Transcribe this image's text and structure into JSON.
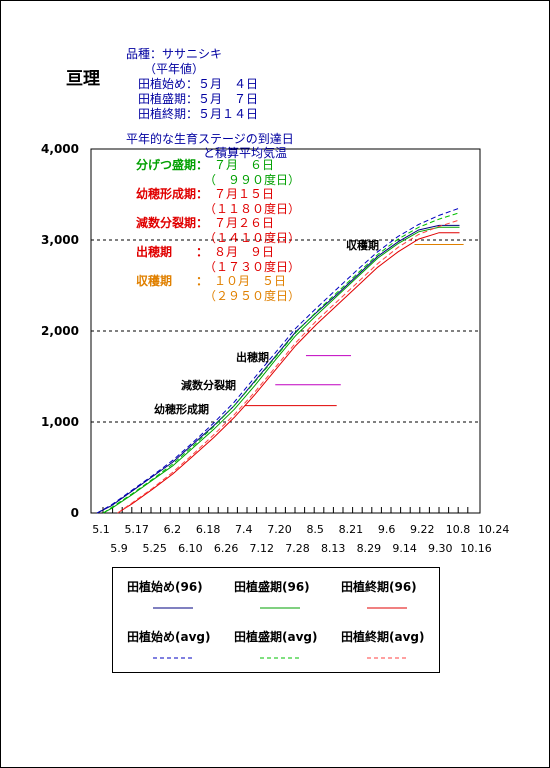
{
  "page": {
    "title": "亘理",
    "variety_line": "品種：ササニシキ",
    "avg_label": "（平年値）",
    "planting_dates": [
      "田植始め：５月　４日",
      "田植盛期：５月　７日",
      "田植終期：５月１４日"
    ],
    "chart_heading_1": "平年的な生育ステージの到達日",
    "chart_heading_2": "と積算平均気温"
  },
  "stages": [
    {
      "name": "分げつ盛期：",
      "date": "７月　６日",
      "gdd": "（　９９０度日）",
      "color": "#00a000"
    },
    {
      "name": "幼穂形成期：",
      "date": "７月１５日",
      "gdd": "（１１８０度日）",
      "color": "#e00000"
    },
    {
      "name": "減数分裂期：",
      "date": "７月２６日",
      "gdd": "（１４１０度日）",
      "color": "#e00000"
    },
    {
      "name": "出穂期　　：",
      "date": "８月　９日",
      "gdd": "（１７３０度日）",
      "color": "#e00000"
    },
    {
      "name": "収穫期　　：",
      "date": "１０月　５日",
      "gdd": "（２９５０度日）",
      "color": "#e08000"
    }
  ],
  "chart_labels": {
    "heading": "出穂期",
    "meiosis": "減数分裂期",
    "panicle": "幼穂形成期",
    "harvest": "収穫期"
  },
  "chart_data": {
    "type": "line",
    "ylim": [
      0,
      4000
    ],
    "y_ticks": [
      "0",
      "1,000",
      "2,000",
      "3,000",
      "4,000"
    ],
    "x_ticks_top": [
      "5.1",
      "5.17",
      "6.2",
      "6.18",
      "7.4",
      "7.20",
      "8.5",
      "8.21",
      "9.6",
      "9.22",
      "10.8",
      "10.24"
    ],
    "x_ticks_bottom": [
      "5.9",
      "5.25",
      "6.10",
      "6.26",
      "7.12",
      "7.28",
      "8.13",
      "8.29",
      "9.14",
      "9.30",
      "10.16"
    ],
    "x_day_range": [
      0,
      190
    ],
    "hlines": [
      1000,
      2000,
      3000
    ],
    "series": [
      {
        "name": "田植始め(96)",
        "color": "#000080",
        "dash": "solid",
        "x": [
          3,
          10,
          20,
          30,
          40,
          50,
          60,
          70,
          80,
          90,
          100,
          110,
          120,
          130,
          140,
          150,
          160,
          170,
          178,
          180
        ],
        "y": [
          0,
          80,
          240,
          400,
          560,
          760,
          960,
          1180,
          1450,
          1720,
          1990,
          2200,
          2400,
          2610,
          2820,
          2980,
          3110,
          3160,
          3160,
          3160
        ]
      },
      {
        "name": "田植盛期(96)",
        "color": "#00a000",
        "dash": "solid",
        "x": [
          6,
          10,
          20,
          30,
          40,
          50,
          60,
          70,
          80,
          90,
          100,
          110,
          120,
          130,
          140,
          150,
          160,
          170,
          178,
          180
        ],
        "y": [
          0,
          50,
          200,
          360,
          520,
          720,
          920,
          1140,
          1400,
          1680,
          1950,
          2170,
          2380,
          2590,
          2800,
          2960,
          3090,
          3140,
          3140,
          3140
        ]
      },
      {
        "name": "田植終期(96)",
        "color": "#e00000",
        "dash": "solid",
        "x": [
          13,
          20,
          30,
          40,
          50,
          60,
          70,
          80,
          90,
          100,
          110,
          120,
          130,
          140,
          150,
          160,
          170,
          178,
          180
        ],
        "y": [
          0,
          100,
          260,
          430,
          630,
          830,
          1050,
          1300,
          1570,
          1840,
          2070,
          2280,
          2490,
          2700,
          2870,
          3010,
          3080,
          3080,
          3080
        ]
      },
      {
        "name": "田植始め(avg)",
        "color": "#0000c0",
        "dash": "dashed",
        "x": [
          3,
          10,
          20,
          30,
          40,
          50,
          60,
          70,
          80,
          90,
          100,
          110,
          120,
          130,
          140,
          150,
          160,
          170,
          180
        ],
        "y": [
          0,
          90,
          250,
          410,
          580,
          780,
          990,
          1220,
          1490,
          1760,
          2030,
          2250,
          2460,
          2670,
          2870,
          3040,
          3170,
          3270,
          3350
        ]
      },
      {
        "name": "田植盛期(avg)",
        "color": "#00c000",
        "dash": "dashed",
        "x": [
          6,
          10,
          20,
          30,
          40,
          50,
          60,
          70,
          80,
          90,
          100,
          110,
          120,
          130,
          140,
          150,
          160,
          170,
          180
        ],
        "y": [
          0,
          60,
          210,
          370,
          540,
          740,
          950,
          1180,
          1440,
          1710,
          1980,
          2210,
          2420,
          2630,
          2840,
          3010,
          3140,
          3230,
          3300
        ]
      },
      {
        "name": "田植終期(avg)",
        "color": "#ff4040",
        "dash": "dashed",
        "x": [
          13,
          20,
          30,
          40,
          50,
          60,
          70,
          80,
          90,
          100,
          110,
          120,
          130,
          140,
          150,
          160,
          170,
          180
        ],
        "y": [
          0,
          110,
          270,
          450,
          650,
          860,
          1080,
          1330,
          1600,
          1870,
          2110,
          2320,
          2530,
          2740,
          2920,
          3060,
          3150,
          3220
        ]
      }
    ],
    "stage_bars": [
      {
        "label": "出穂期",
        "y": 1730,
        "x": [
          105,
          127
        ],
        "color": "#c000c0"
      },
      {
        "label": "減数分裂期",
        "y": 1410,
        "x": [
          90,
          122
        ],
        "color": "#c000c0"
      },
      {
        "label": "幼穂形成期",
        "y": 1180,
        "x": [
          75,
          120
        ],
        "color": "#e00000"
      },
      {
        "label": "収穫期",
        "y": 2950,
        "x": [
          158,
          182
        ],
        "color": "#e08000"
      }
    ]
  }
}
